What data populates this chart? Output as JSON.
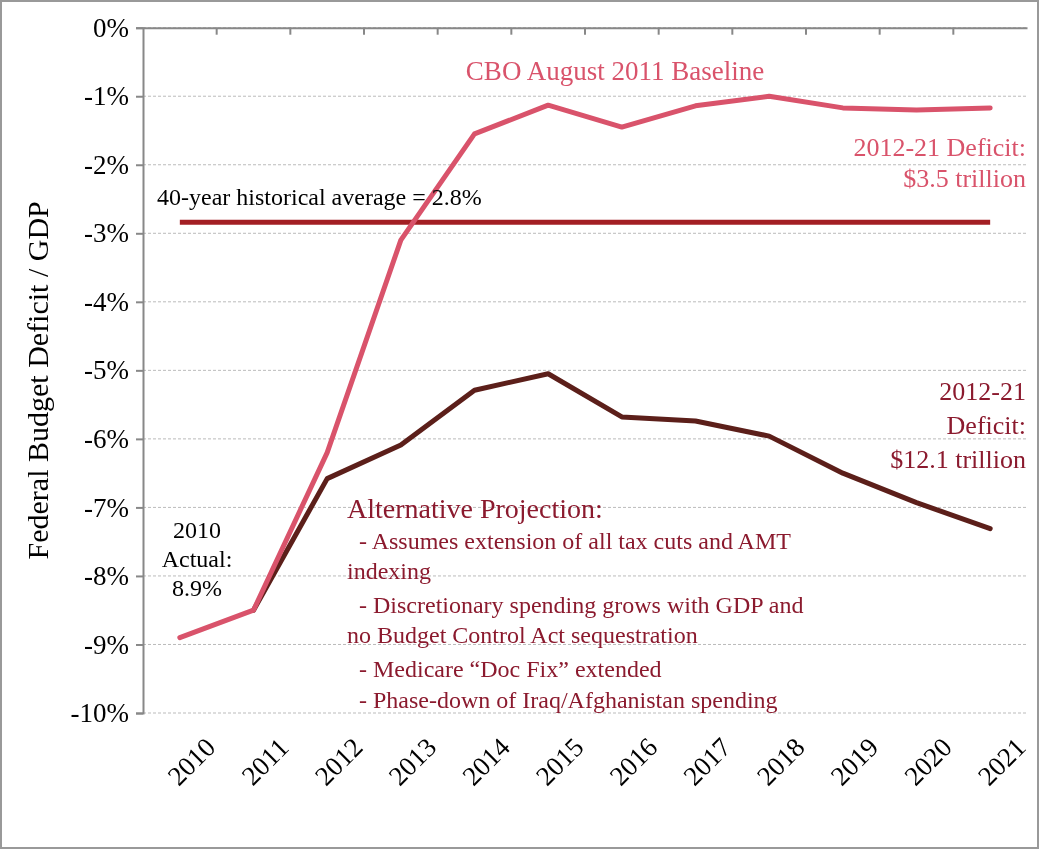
{
  "chart_data": {
    "type": "line",
    "ylabel": "Federal Budget Deficit / GDP",
    "categories": [
      "2010",
      "2011",
      "2012",
      "2013",
      "2014",
      "2015",
      "2016",
      "2017",
      "2018",
      "2019",
      "2020",
      "2021"
    ],
    "series": [
      {
        "name": "CBO August 2011 Baseline",
        "color": "#d9536b",
        "values": [
          -8.9,
          -8.5,
          -6.2,
          -3.1,
          -1.55,
          -1.13,
          -1.45,
          -1.14,
          -1.0,
          -1.17,
          -1.2,
          -1.17
        ]
      },
      {
        "color": "#5c1f1a",
        "values": [
          null,
          -8.5,
          -6.58,
          -6.09,
          -5.29,
          -5.05,
          -5.68,
          -5.74,
          -5.96,
          -6.5,
          -6.93,
          -7.31
        ]
      }
    ],
    "ylim": [
      -10,
      0
    ],
    "yticks": [
      {
        "value": 0,
        "label": "0%"
      },
      {
        "value": -1,
        "label": "-1%"
      },
      {
        "value": -2,
        "label": "-2%"
      },
      {
        "value": -3,
        "label": "-3%"
      },
      {
        "value": -4,
        "label": "-4%"
      },
      {
        "value": -5,
        "label": "-5%"
      },
      {
        "value": -6,
        "label": "-6%"
      },
      {
        "value": -7,
        "label": "-7%"
      },
      {
        "value": -8,
        "label": "-8%"
      },
      {
        "value": -9,
        "label": "-9%"
      },
      {
        "value": -10,
        "label": "-10%"
      }
    ],
    "grid": "y",
    "ref_lines": [
      {
        "axis": "y",
        "value": -2.84,
        "color": "#a31f24"
      }
    ],
    "annotations": [
      "2010\nActual:\n8.9%",
      "2012-21 Deficit:\n$3.5 trillion",
      "2012-21\nDeficit:\n$12.1 trillion",
      "Alternative Projection:",
      "  - Assumes extension of all tax cuts and AMT\nindexing",
      "  - Discretionary spending grows with GDP and\nno Budget Control Act sequestration",
      "  - Medicare “Doc Fix” extended",
      "  - Phase-down of Iraq/Afghanistan spending",
      "40-year historical average = 2.8%"
    ]
  }
}
